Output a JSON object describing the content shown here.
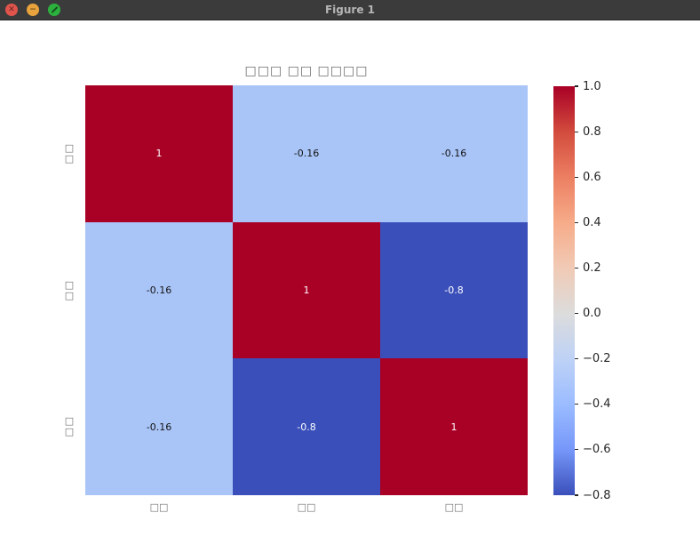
{
  "window": {
    "title": "Figure 1"
  },
  "chart_data": {
    "type": "heatmap",
    "title": "□□□ □□ □□□□",
    "title_note": "CJK glyphs rendered as missing-glyph tofu boxes",
    "x_categories": [
      "□□",
      "□□",
      "□□"
    ],
    "y_categories": [
      "□□",
      "□□",
      "□□"
    ],
    "matrix": [
      [
        1,
        -0.16,
        -0.16
      ],
      [
        -0.16,
        1,
        -0.8
      ],
      [
        -0.16,
        -0.8,
        1
      ]
    ],
    "annotations": [
      [
        "1",
        "-0.16",
        "-0.16"
      ],
      [
        "-0.16",
        "1",
        "-0.8"
      ],
      [
        "-0.16",
        "-0.8",
        "1"
      ]
    ],
    "colormap": "coolwarm",
    "vmin": -0.8,
    "vmax": 1.0,
    "legend_position": "right",
    "grid": false,
    "colorbar_ticks": [
      "1.0",
      "0.8",
      "0.6",
      "0.4",
      "0.2",
      "0.0",
      "−0.2",
      "−0.4",
      "−0.6",
      "−0.8"
    ],
    "colorbar_gradient": [
      {
        "pos": 0,
        "color": "#a90026"
      },
      {
        "pos": 11.1,
        "color": "#d24b3d"
      },
      {
        "pos": 22.2,
        "color": "#ec7f62"
      },
      {
        "pos": 33.3,
        "color": "#f6ab89"
      },
      {
        "pos": 44.4,
        "color": "#f1cab5"
      },
      {
        "pos": 55.6,
        "color": "#dcdcdc"
      },
      {
        "pos": 66.7,
        "color": "#bed2f6"
      },
      {
        "pos": 77.8,
        "color": "#9bbcff"
      },
      {
        "pos": 88.9,
        "color": "#7697f9"
      },
      {
        "pos": 100,
        "color": "#3a4fba"
      }
    ],
    "cell_colors": [
      [
        "#a90026",
        "#a9c5f8",
        "#a9c5f8"
      ],
      [
        "#a9c5f8",
        "#a90026",
        "#3a4fba"
      ],
      [
        "#a9c5f8",
        "#3a4fba",
        "#a90026"
      ]
    ],
    "text_colors": [
      [
        "#ffffff",
        "#141414",
        "#141414"
      ],
      [
        "#141414",
        "#ffffff",
        "#ffffff"
      ],
      [
        "#141414",
        "#ffffff",
        "#ffffff"
      ]
    ]
  }
}
